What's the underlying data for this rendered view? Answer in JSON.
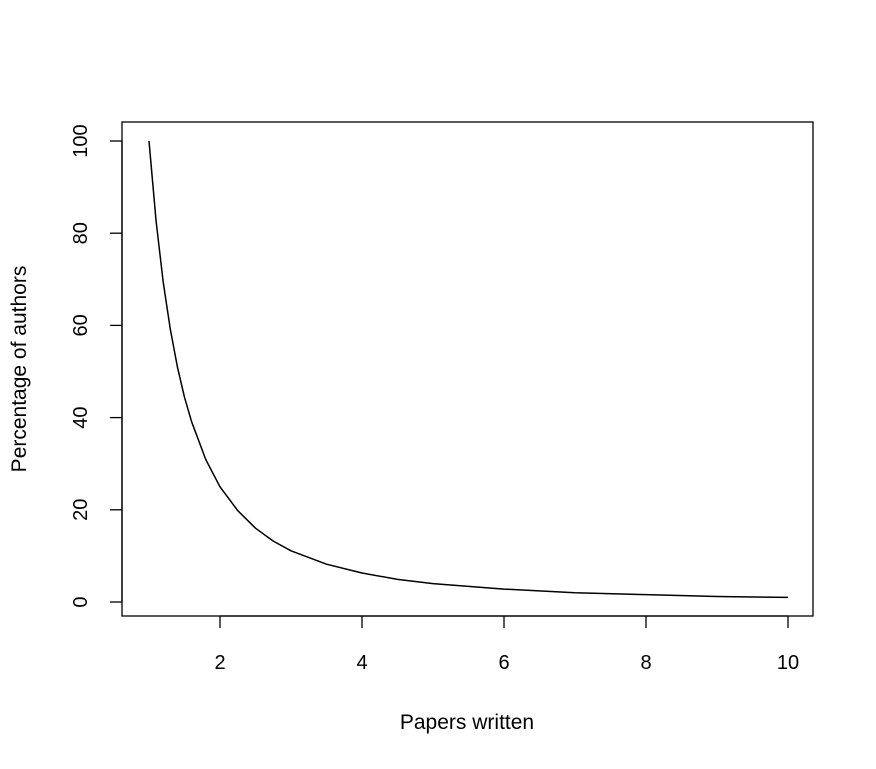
{
  "chart_data": {
    "type": "line",
    "title": "",
    "xlabel": "Papers written",
    "ylabel": "Percentage of authors",
    "xlim": [
      1,
      10
    ],
    "ylim": [
      0,
      100
    ],
    "x_ticks": [
      2,
      4,
      6,
      8,
      10
    ],
    "x_tick_labels": [
      "2",
      "4",
      "6",
      "8",
      "10"
    ],
    "y_ticks": [
      0,
      20,
      40,
      60,
      80,
      100
    ],
    "y_tick_labels": [
      "0",
      "20",
      "40",
      "60",
      "80",
      "100"
    ],
    "grid": false,
    "legend": "none",
    "series": [
      {
        "color": "#000000",
        "x": [
          1,
          1.1,
          1.2,
          1.3,
          1.4,
          1.5,
          1.6,
          1.8,
          2,
          2.25,
          2.5,
          2.75,
          3,
          3.5,
          4,
          4.5,
          5,
          6,
          7,
          8,
          9,
          10
        ],
        "y": [
          100,
          82.6,
          69.4,
          59.2,
          51.0,
          44.4,
          39.1,
          30.9,
          25.0,
          19.8,
          16.0,
          13.2,
          11.1,
          8.2,
          6.3,
          4.9,
          4.0,
          2.8,
          2.0,
          1.6,
          1.2,
          1.0
        ]
      }
    ]
  }
}
